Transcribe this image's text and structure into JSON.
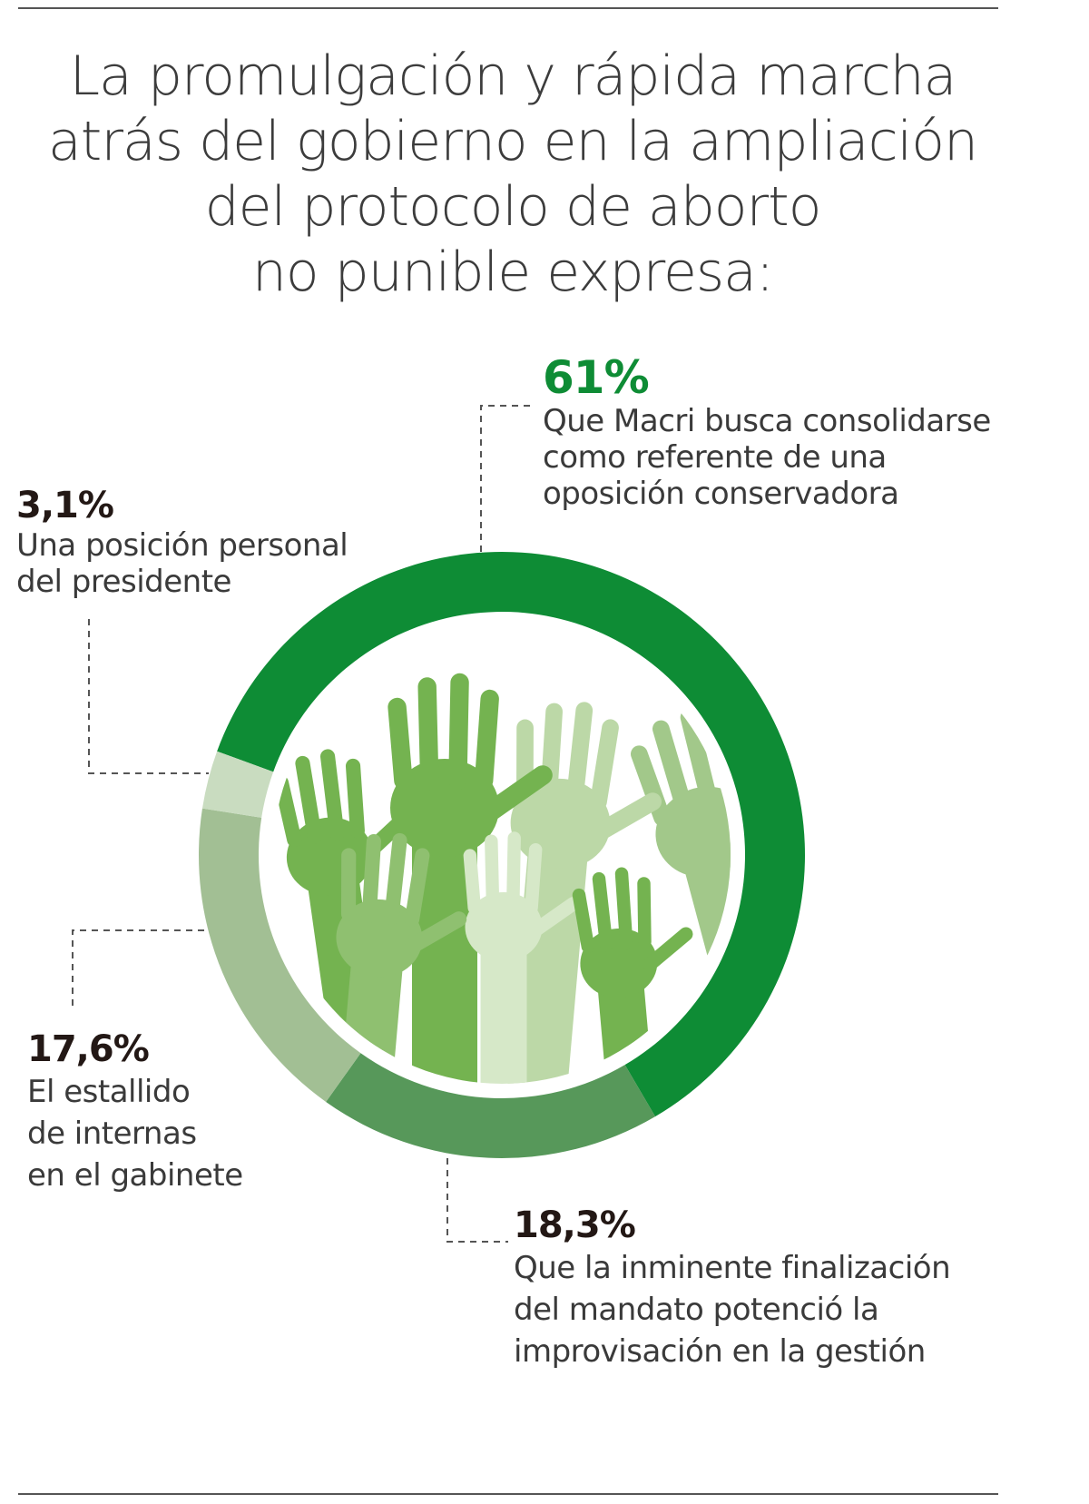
{
  "title": "La promulgación y rápida marcha atrás del gobierno en la ampliación del protocolo de aborto no punible expresa:",
  "title_lines": [
    "La promulgación y rápida marcha",
    "atrás del gobierno en la ampliación",
    "del protocolo de aborto",
    "no punible expresa:"
  ],
  "chart_data": {
    "type": "pie",
    "subtype": "donut",
    "title": "La promulgación y rápida marcha atrás del gobierno en la ampliación del protocolo de aborto no punible expresa:",
    "slices": [
      {
        "label": "Que Macri busca consolidarse como referente de una oposición conservadora",
        "value": 61,
        "display": "61%",
        "color": "#0e8c35",
        "lines": [
          "Que Macri busca consolidarse",
          "como referente de una",
          "oposición conservadora"
        ]
      },
      {
        "label": "Que la inminente finalización del mandato potenció la improvisación en la gestión",
        "value": 18.3,
        "display": "18,3%",
        "color": "#57985a",
        "lines": [
          "Que la inminente finalización",
          "del mandato potenció la",
          "improvisación en la gestión"
        ]
      },
      {
        "label": "El estallido de internas en el gabinete",
        "value": 17.6,
        "display": "17,6%",
        "color": "#a2bf94",
        "lines": [
          "El estallido",
          "de internas",
          "en el gabinete"
        ]
      },
      {
        "label": "Una posición personal del presidente",
        "value": 3.1,
        "display": "3,1%",
        "color": "#c9dcc0",
        "lines": [
          "Una posición personal",
          "del presidente"
        ]
      }
    ]
  }
}
